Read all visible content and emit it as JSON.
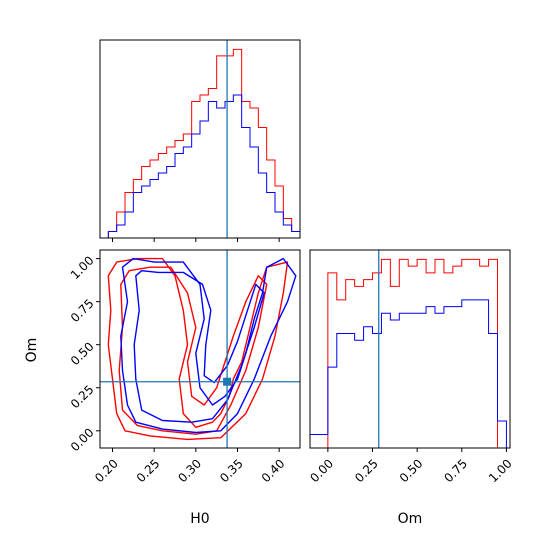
{
  "colors": {
    "red_series": "#ff0000",
    "blue_series": "#0000ff",
    "truth": "#1f77b4"
  },
  "chart_data": [
    {
      "type": "histogram",
      "panel": "H0 marginal",
      "xlabel": "",
      "xlim": [
        0.185,
        0.425
      ],
      "xticks": [
        "0.20",
        "0.25",
        "0.30",
        "0.35",
        "0.40"
      ],
      "y_ticklabels_shown": false,
      "truth": 0.3375,
      "bin_edges": [
        0.185,
        0.195,
        0.205,
        0.215,
        0.225,
        0.235,
        0.245,
        0.255,
        0.265,
        0.275,
        0.285,
        0.295,
        0.305,
        0.315,
        0.325,
        0.335,
        0.345,
        0.355,
        0.365,
        0.375,
        0.385,
        0.395,
        0.405,
        0.415,
        0.425
      ],
      "series": [
        {
          "color": "red",
          "values": [
            0,
            1,
            4,
            7,
            9,
            11,
            12,
            13,
            14,
            15,
            16,
            21,
            22,
            23,
            28,
            28,
            29,
            21,
            20,
            17,
            12,
            8,
            3,
            1
          ]
        },
        {
          "color": "blue",
          "values": [
            0,
            1,
            2,
            4,
            7,
            8,
            9,
            10,
            11,
            13,
            14,
            16,
            18,
            21,
            20,
            21,
            22,
            17,
            14,
            10,
            7,
            4,
            2,
            1
          ]
        }
      ]
    },
    {
      "type": "contour",
      "panel": "H0 vs Om",
      "xlabel": "H0",
      "ylabel": "Om",
      "xlim": [
        0.185,
        0.425
      ],
      "ylim": [
        -0.1,
        1.05
      ],
      "xticks": [
        "0.20",
        "0.25",
        "0.30",
        "0.35",
        "0.40"
      ],
      "yticks": [
        "0.00",
        "0.25",
        "0.50",
        "0.75",
        "1.00"
      ],
      "truth": {
        "H0": 0.3375,
        "Om": 0.285
      },
      "series": [
        {
          "color": "red",
          "contours": [
            [
              [
                0.195,
                0.9
              ],
              [
                0.198,
                0.7
              ],
              [
                0.195,
                0.5
              ],
              [
                0.2,
                0.3
              ],
              [
                0.205,
                0.1
              ],
              [
                0.215,
                0.0
              ],
              [
                0.245,
                -0.03
              ],
              [
                0.29,
                -0.05
              ],
              [
                0.33,
                -0.04
              ],
              [
                0.36,
                0.1
              ],
              [
                0.38,
                0.3
              ],
              [
                0.395,
                0.55
              ],
              [
                0.405,
                0.8
              ],
              [
                0.41,
                0.98
              ],
              [
                0.385,
                0.95
              ],
              [
                0.375,
                0.8
              ],
              [
                0.365,
                0.6
              ],
              [
                0.355,
                0.4
              ],
              [
                0.345,
                0.3
              ],
              [
                0.34,
                0.2
              ],
              [
                0.33,
                0.1
              ],
              [
                0.32,
                0.05
              ],
              [
                0.3,
                0.02
              ],
              [
                0.285,
                0.1
              ],
              [
                0.28,
                0.3
              ],
              [
                0.29,
                0.5
              ],
              [
                0.285,
                0.7
              ],
              [
                0.275,
                0.9
              ],
              [
                0.26,
                1.0
              ],
              [
                0.23,
                1.0
              ],
              [
                0.205,
                0.98
              ],
              [
                0.195,
                0.9
              ]
            ],
            [
              [
                0.21,
                0.85
              ],
              [
                0.212,
                0.6
              ],
              [
                0.208,
                0.35
              ],
              [
                0.212,
                0.12
              ],
              [
                0.23,
                0.03
              ],
              [
                0.26,
                0.0
              ],
              [
                0.3,
                -0.02
              ],
              [
                0.325,
                0.0
              ],
              [
                0.342,
                0.15
              ],
              [
                0.36,
                0.35
              ],
              [
                0.375,
                0.6
              ],
              [
                0.385,
                0.85
              ],
              [
                0.375,
                0.9
              ],
              [
                0.36,
                0.75
              ],
              [
                0.345,
                0.55
              ],
              [
                0.335,
                0.4
              ],
              [
                0.325,
                0.25
              ],
              [
                0.31,
                0.15
              ],
              [
                0.295,
                0.2
              ],
              [
                0.29,
                0.4
              ],
              [
                0.3,
                0.6
              ],
              [
                0.29,
                0.8
              ],
              [
                0.27,
                0.95
              ],
              [
                0.245,
                0.95
              ],
              [
                0.22,
                0.93
              ],
              [
                0.21,
                0.85
              ]
            ]
          ]
        },
        {
          "color": "blue",
          "contours": [
            [
              [
                0.212,
                0.95
              ],
              [
                0.218,
                0.75
              ],
              [
                0.21,
                0.55
              ],
              [
                0.212,
                0.35
              ],
              [
                0.218,
                0.15
              ],
              [
                0.228,
                0.05
              ],
              [
                0.26,
                0.01
              ],
              [
                0.3,
                -0.01
              ],
              [
                0.33,
                0.0
              ],
              [
                0.35,
                0.1
              ],
              [
                0.37,
                0.3
              ],
              [
                0.39,
                0.55
              ],
              [
                0.41,
                0.75
              ],
              [
                0.42,
                0.9
              ],
              [
                0.405,
                1.0
              ],
              [
                0.385,
                0.95
              ],
              [
                0.38,
                0.8
              ],
              [
                0.37,
                0.65
              ],
              [
                0.36,
                0.45
              ],
              [
                0.35,
                0.3
              ],
              [
                0.335,
                0.2
              ],
              [
                0.32,
                0.15
              ],
              [
                0.305,
                0.25
              ],
              [
                0.3,
                0.45
              ],
              [
                0.31,
                0.65
              ],
              [
                0.305,
                0.85
              ],
              [
                0.285,
                0.98
              ],
              [
                0.25,
                0.98
              ],
              [
                0.225,
                1.0
              ],
              [
                0.212,
                0.95
              ]
            ],
            [
              [
                0.228,
                0.9
              ],
              [
                0.232,
                0.7
              ],
              [
                0.226,
                0.5
              ],
              [
                0.228,
                0.3
              ],
              [
                0.235,
                0.12
              ],
              [
                0.26,
                0.06
              ],
              [
                0.295,
                0.05
              ],
              [
                0.32,
                0.07
              ],
              [
                0.338,
                0.18
              ],
              [
                0.355,
                0.38
              ],
              [
                0.37,
                0.6
              ],
              [
                0.382,
                0.8
              ],
              [
                0.372,
                0.85
              ],
              [
                0.362,
                0.7
              ],
              [
                0.35,
                0.52
              ],
              [
                0.338,
                0.38
              ],
              [
                0.322,
                0.28
              ],
              [
                0.31,
                0.32
              ],
              [
                0.312,
                0.5
              ],
              [
                0.318,
                0.7
              ],
              [
                0.308,
                0.85
              ],
              [
                0.285,
                0.92
              ],
              [
                0.255,
                0.92
              ],
              [
                0.235,
                0.93
              ],
              [
                0.228,
                0.9
              ]
            ]
          ]
        }
      ]
    },
    {
      "type": "histogram",
      "panel": "Om marginal",
      "xlabel": "Om",
      "xlim": [
        -0.1,
        1.02
      ],
      "xticks": [
        "0.00",
        "0.25",
        "0.50",
        "0.75",
        "1.00"
      ],
      "y_ticklabels_shown": false,
      "truth": 0.285,
      "bin_edges": [
        -0.1,
        0.0,
        0.05,
        0.1,
        0.15,
        0.2,
        0.25,
        0.3,
        0.35,
        0.4,
        0.45,
        0.5,
        0.55,
        0.6,
        0.65,
        0.7,
        0.75,
        0.8,
        0.85,
        0.9,
        0.95,
        1.0
      ],
      "series": [
        {
          "color": "red",
          "values": [
            0,
            26,
            22,
            25,
            24,
            25,
            26,
            28,
            24,
            28,
            27,
            28,
            26,
            28,
            26,
            27,
            28,
            28,
            27,
            28,
            0
          ]
        },
        {
          "color": "blue",
          "values": [
            2,
            12,
            17,
            17,
            16,
            18,
            17,
            20,
            19,
            20,
            20,
            20,
            21,
            20,
            21,
            21,
            22,
            22,
            22,
            17,
            4
          ]
        }
      ]
    }
  ]
}
